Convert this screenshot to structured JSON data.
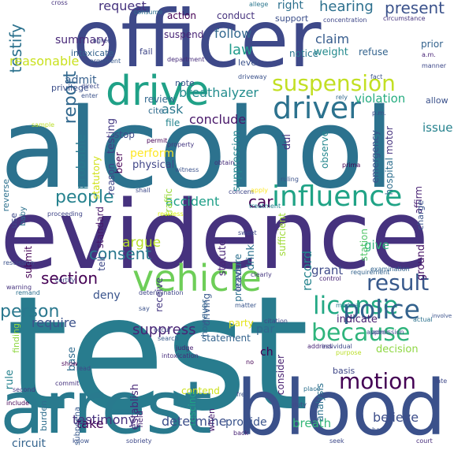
{
  "words": [
    {
      "t": "test",
      "c": "#287c8e"
    },
    {
      "t": "alcohol",
      "c": "#2c728e"
    },
    {
      "t": "evidence",
      "c": "#46327e"
    },
    {
      "t": "arrest",
      "c": "#297a8e"
    },
    {
      "t": "blood",
      "c": "#3b518b"
    },
    {
      "t": "officer",
      "c": "#3e4989"
    },
    {
      "t": "vehicle",
      "c": "#6ece58"
    },
    {
      "t": "drive",
      "c": "#1fa187"
    },
    {
      "t": "driver",
      "c": "#2c728e"
    },
    {
      "t": "suspension",
      "c": "#c2df23"
    },
    {
      "t": "influence",
      "c": "#20a386"
    },
    {
      "t": "because",
      "c": "#2fb47c"
    },
    {
      "t": "license",
      "c": "#22a884"
    },
    {
      "t": "police",
      "c": "#33628d"
    },
    {
      "t": "motion",
      "c": "#440154"
    },
    {
      "t": "result",
      "c": "#38598c"
    },
    {
      "t": "people",
      "c": "#26828e"
    },
    {
      "t": "section",
      "c": "#440154"
    },
    {
      "t": "consent",
      "c": "#2a788e"
    },
    {
      "t": "person",
      "c": "#2a788e"
    },
    {
      "t": "report",
      "c": "#31688e"
    },
    {
      "t": "testify",
      "c": "#2c728e"
    },
    {
      "t": "hearing",
      "c": "#2d708e"
    },
    {
      "t": "present",
      "c": "#3b528b"
    },
    {
      "t": "request",
      "c": "#46337e"
    },
    {
      "t": "issue",
      "c": "#26828e"
    },
    {
      "t": "suppress",
      "c": "#482475"
    },
    {
      "t": "testimony",
      "c": "#46327e"
    },
    {
      "t": "determine",
      "c": "#3c4f8a"
    },
    {
      "t": "breath",
      "c": "#35b779"
    },
    {
      "t": "believe",
      "c": "#3d4e8a"
    },
    {
      "t": "law",
      "c": "#1f9a8a"
    },
    {
      "t": "follow",
      "c": "#31688e"
    },
    {
      "t": "ask",
      "c": "#2a788e"
    },
    {
      "t": "probable",
      "c": "#29798e"
    },
    {
      "t": "car",
      "c": "#440154"
    },
    {
      "t": "argue",
      "c": "#b5de2b"
    },
    {
      "t": "record",
      "c": "#25848e"
    },
    {
      "t": "require",
      "c": "#3b528b"
    },
    {
      "t": "accident",
      "c": "#1f9f88"
    },
    {
      "t": "summary",
      "c": "#482878"
    },
    {
      "t": "reasonable",
      "c": "#cae11f"
    },
    {
      "t": "conclude",
      "c": "#481769"
    },
    {
      "t": "breathalyzer",
      "c": "#228c8d"
    },
    {
      "t": "claim",
      "c": "#365c8d"
    },
    {
      "t": "weight",
      "c": "#238a8d"
    },
    {
      "t": "violation",
      "c": "#27ad81"
    },
    {
      "t": "admit",
      "c": "#355f8d"
    },
    {
      "t": "conduct",
      "c": "#46337e"
    },
    {
      "t": "action",
      "c": "#440154"
    },
    {
      "t": "suspend",
      "c": "#482475"
    },
    {
      "t": "testing",
      "c": "#443a83"
    },
    {
      "t": "stop",
      "c": "#3e4a89"
    },
    {
      "t": "perform",
      "c": "#fde725"
    },
    {
      "t": "physical",
      "c": "#404688"
    },
    {
      "t": "suppression",
      "c": "#24878e"
    },
    {
      "t": "dui",
      "c": "#46327e"
    },
    {
      "t": "emergency",
      "c": "#3b528b"
    },
    {
      "t": "hospital",
      "c": "#2e6f8e"
    },
    {
      "t": "motor",
      "c": "#46337e"
    },
    {
      "t": "statute",
      "c": "#482576"
    },
    {
      "t": "tell",
      "c": "#3e4989"
    },
    {
      "t": "deny",
      "c": "#3a548c"
    },
    {
      "t": "indicate",
      "c": "#482071"
    },
    {
      "t": "grant",
      "c": "#3e4a89"
    },
    {
      "t": "give",
      "c": "#30b47c"
    },
    {
      "t": "take",
      "c": "#450559"
    },
    {
      "t": "establish",
      "c": "#482878"
    },
    {
      "t": "statement",
      "c": "#33638d"
    },
    {
      "t": "decision",
      "c": "#8fd744"
    },
    {
      "t": "basis",
      "c": "#3f4788"
    },
    {
      "t": "analysis",
      "c": "#2d718e"
    },
    {
      "t": "provide",
      "c": "#3a548c"
    },
    {
      "t": "circuit",
      "c": "#33638d"
    },
    {
      "t": "rule",
      "c": "#26828e"
    },
    {
      "t": "submit",
      "c": "#440154"
    },
    {
      "t": "base",
      "c": "#2f6c8e"
    },
    {
      "t": "contend",
      "c": "#cde11d"
    },
    {
      "t": "ground",
      "c": "#481467"
    },
    {
      "t": "station",
      "c": "#52c569"
    },
    {
      "t": "traffic",
      "c": "#9bd93c"
    },
    {
      "t": "standard",
      "c": "#481769"
    },
    {
      "t": "file",
      "c": "#25848e"
    },
    {
      "t": "review",
      "c": "#31688e"
    },
    {
      "t": "cite",
      "c": "#2f6c8e"
    },
    {
      "t": "note",
      "c": "#39568c"
    },
    {
      "t": "privilege",
      "c": "#3c4f8a"
    },
    {
      "t": "intoxicate",
      "c": "#33638d"
    },
    {
      "t": "right",
      "c": "#2d708e"
    },
    {
      "t": "support",
      "c": "#3c4f8a"
    },
    {
      "t": "notice",
      "c": "#2a788e"
    },
    {
      "t": "refuse",
      "c": "#33638d"
    },
    {
      "t": "prior",
      "c": "#33628d"
    },
    {
      "t": "level",
      "c": "#3b528b"
    },
    {
      "t": "fail",
      "c": "#3f4788"
    },
    {
      "t": "beer",
      "c": "#440154"
    },
    {
      "t": "reason",
      "c": "#404688"
    },
    {
      "t": "statutory",
      "c": "#d2e21b"
    },
    {
      "t": "receive",
      "c": "#453882"
    },
    {
      "t": "procedure",
      "c": "#2d708e"
    },
    {
      "t": "driving",
      "c": "#38598c"
    },
    {
      "t": "party",
      "c": "#e5e419"
    },
    {
      "t": "par",
      "c": "#31688e"
    },
    {
      "t": "ch",
      "c": "#440154"
    },
    {
      "t": "drink",
      "c": "#2c728e"
    },
    {
      "t": "leave",
      "c": "#3f4889"
    },
    {
      "t": "sufficient",
      "c": "#a0da39"
    },
    {
      "t": "observe",
      "c": "#24878e"
    },
    {
      "t": "consider",
      "c": "#482071"
    },
    {
      "t": "affirm",
      "c": "#482173"
    },
    {
      "t": "charge",
      "c": "#3a548c"
    },
    {
      "t": "reverse",
      "c": "#2d718e"
    },
    {
      "t": "rescind",
      "c": "#20a486"
    },
    {
      "t": "when",
      "c": "#481d6f"
    },
    {
      "t": "however",
      "c": "#33638d"
    },
    {
      "t": "field",
      "c": "#482475"
    },
    {
      "t": "finding",
      "c": "#90d743"
    },
    {
      "t": "subpoena",
      "c": "#38598c"
    },
    {
      "t": "burden",
      "c": "#2e6e8e"
    },
    {
      "t": "baby",
      "c": "#2c728e"
    },
    {
      "t": "use",
      "c": "#3e4989"
    },
    {
      "t": "cross",
      "c": "#46337e"
    },
    {
      "t": "consume",
      "c": "#2d708e"
    },
    {
      "t": "allege",
      "c": "#2a768e"
    },
    {
      "t": "concentration",
      "c": "#3f4788"
    },
    {
      "t": "circumstance",
      "c": "#46337e"
    },
    {
      "t": "agree",
      "c": "#3e4989"
    },
    {
      "t": "department",
      "c": "#472d7b"
    },
    {
      "t": "argument",
      "c": "#38598c"
    },
    {
      "t": "direct",
      "c": "#3e4a89"
    },
    {
      "t": "permit",
      "c": "#440154"
    },
    {
      "t": "sample",
      "c": "#bade28"
    },
    {
      "t": "enter",
      "c": "#3b528b"
    },
    {
      "t": "property",
      "c": "#453882"
    },
    {
      "t": "witness",
      "c": "#3b528b"
    },
    {
      "t": "obtain",
      "c": "#472c7a"
    },
    {
      "t": "ruling",
      "c": "#3b528b"
    },
    {
      "t": "prima",
      "c": "#440154"
    },
    {
      "t": "rely",
      "c": "#31688e"
    },
    {
      "t": "allow",
      "c": "#3b518b"
    },
    {
      "t": "shall",
      "c": "#3e4989"
    },
    {
      "t": "concern",
      "c": "#3f4788"
    },
    {
      "t": "apply",
      "c": "#fde725"
    },
    {
      "t": "treatment",
      "c": "#25838e"
    },
    {
      "t": "reckless",
      "c": "#ddf111"
    },
    {
      "t": "proceeding",
      "c": "#404688"
    },
    {
      "t": "rescission",
      "c": "#3b528b"
    },
    {
      "t": "sweet",
      "c": "#3e4989"
    },
    {
      "t": "clearly",
      "c": "#453781"
    },
    {
      "t": "control",
      "c": "#482475"
    },
    {
      "t": "requirement",
      "c": "#33638d"
    },
    {
      "t": "examination",
      "c": "#33638d"
    },
    {
      "t": "medical",
      "c": "#26828e"
    },
    {
      "t": "actual",
      "c": "#2c728e"
    },
    {
      "t": "admission",
      "c": "#3e4989"
    },
    {
      "t": "involve",
      "c": "#3b528b"
    },
    {
      "t": "certify",
      "c": "#3e4a89"
    },
    {
      "t": "determination",
      "c": "#404688"
    },
    {
      "t": "remand",
      "c": "#2d708e"
    },
    {
      "t": "warning",
      "c": "#46337e"
    },
    {
      "t": "say",
      "c": "#3b528b"
    },
    {
      "t": "matter",
      "c": "#39568c"
    },
    {
      "t": "citation",
      "c": "#3f4788"
    },
    {
      "t": "address",
      "c": "#482475"
    },
    {
      "t": "individual",
      "c": "#3e4989"
    },
    {
      "t": "purpose",
      "c": "#bade28"
    },
    {
      "t": "appear",
      "c": "#3b528b"
    },
    {
      "t": "occur",
      "c": "#3e4a89"
    },
    {
      "t": "search",
      "c": "#38598c"
    },
    {
      "t": "intoxication",
      "c": "#472d7b"
    },
    {
      "t": "judge",
      "c": "#482071"
    },
    {
      "t": "show",
      "c": "#440154"
    },
    {
      "t": "read",
      "c": "#3e4989"
    },
    {
      "t": "commit",
      "c": "#46337e"
    },
    {
      "t": "second",
      "c": "#453882"
    },
    {
      "t": "include",
      "c": "#440154"
    },
    {
      "t": "know",
      "c": "#3b528b"
    },
    {
      "t": "sobriety",
      "c": "#3e4989"
    },
    {
      "t": "back",
      "c": "#482475"
    },
    {
      "t": "duty",
      "c": "#3e4a89"
    },
    {
      "t": "place",
      "c": "#2d708e"
    },
    {
      "t": "seek",
      "c": "#3e4989"
    },
    {
      "t": "hour",
      "c": "#3b528b"
    },
    {
      "t": "court",
      "c": "#472d7b"
    },
    {
      "t": "late",
      "c": "#3e4989"
    },
    {
      "t": "no",
      "c": "#440154"
    },
    {
      "t": "free",
      "c": "#3b528b"
    },
    {
      "t": "p.m.",
      "c": "#3e4989"
    },
    {
      "t": "a.m.",
      "c": "#482475"
    },
    {
      "t": "manner",
      "c": "#3e4989"
    },
    {
      "t": "driveway",
      "c": "#3b528b"
    },
    {
      "t": "fact",
      "c": "#3b528b"
    }
  ]
}
